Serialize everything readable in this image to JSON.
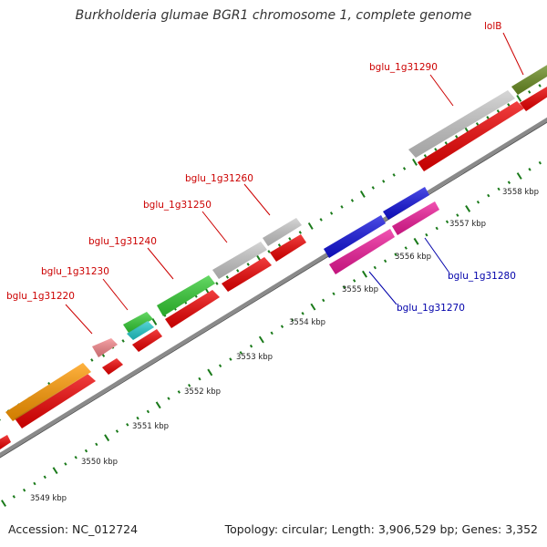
{
  "title": "Burkholderia glumae BGR1 chromosome 1, complete genome",
  "footer": {
    "accession": "Accession: NC_012724",
    "summary": "Topology: circular; Length: 3,906,529 bp; Genes: 3,352"
  },
  "colors": {
    "label_forward": "#cc0000",
    "label_reverse": "#0000aa",
    "tick": "#1a7a1a",
    "backbone": "#888888"
  },
  "scale_labels": [
    "3549 kbp",
    "3550 kbp",
    "3551 kbp",
    "3552 kbp",
    "3553 kbp",
    "3554 kbp",
    "3555 kbp",
    "3556 kbp",
    "3557 kbp",
    "3558 kbp"
  ],
  "genes": [
    {
      "label": "bglu_1g31220",
      "color": "#f4858a",
      "strand": "forward",
      "label_color": "#cc0000"
    },
    {
      "label": "bglu_1g31230",
      "color": "#33cc33",
      "strand": "forward",
      "label_color": "#cc0000"
    },
    {
      "label": "bglu_1g31240",
      "color": "#33cc33",
      "strand": "forward",
      "label_color": "#cc0000"
    },
    {
      "label": "bglu_1g31250",
      "color": "#c8c8c8",
      "strand": "forward",
      "label_color": "#cc0000"
    },
    {
      "label": "bglu_1g31260",
      "color": "#c8c8c8",
      "strand": "forward",
      "label_color": "#cc0000"
    },
    {
      "label": "bglu_1g31270",
      "color": "#ee1a99",
      "strand": "reverse",
      "label_color": "#0000aa"
    },
    {
      "label": "bglu_1g31280",
      "color": "#1111dd",
      "strand": "reverse",
      "label_color": "#0000aa"
    },
    {
      "label": "bglu_1g31290",
      "color": "#c8c8c8",
      "strand": "forward",
      "label_color": "#cc0000"
    },
    {
      "label": "lolB",
      "color": "#6b8e23",
      "strand": "forward",
      "label_color": "#cc0000"
    }
  ]
}
